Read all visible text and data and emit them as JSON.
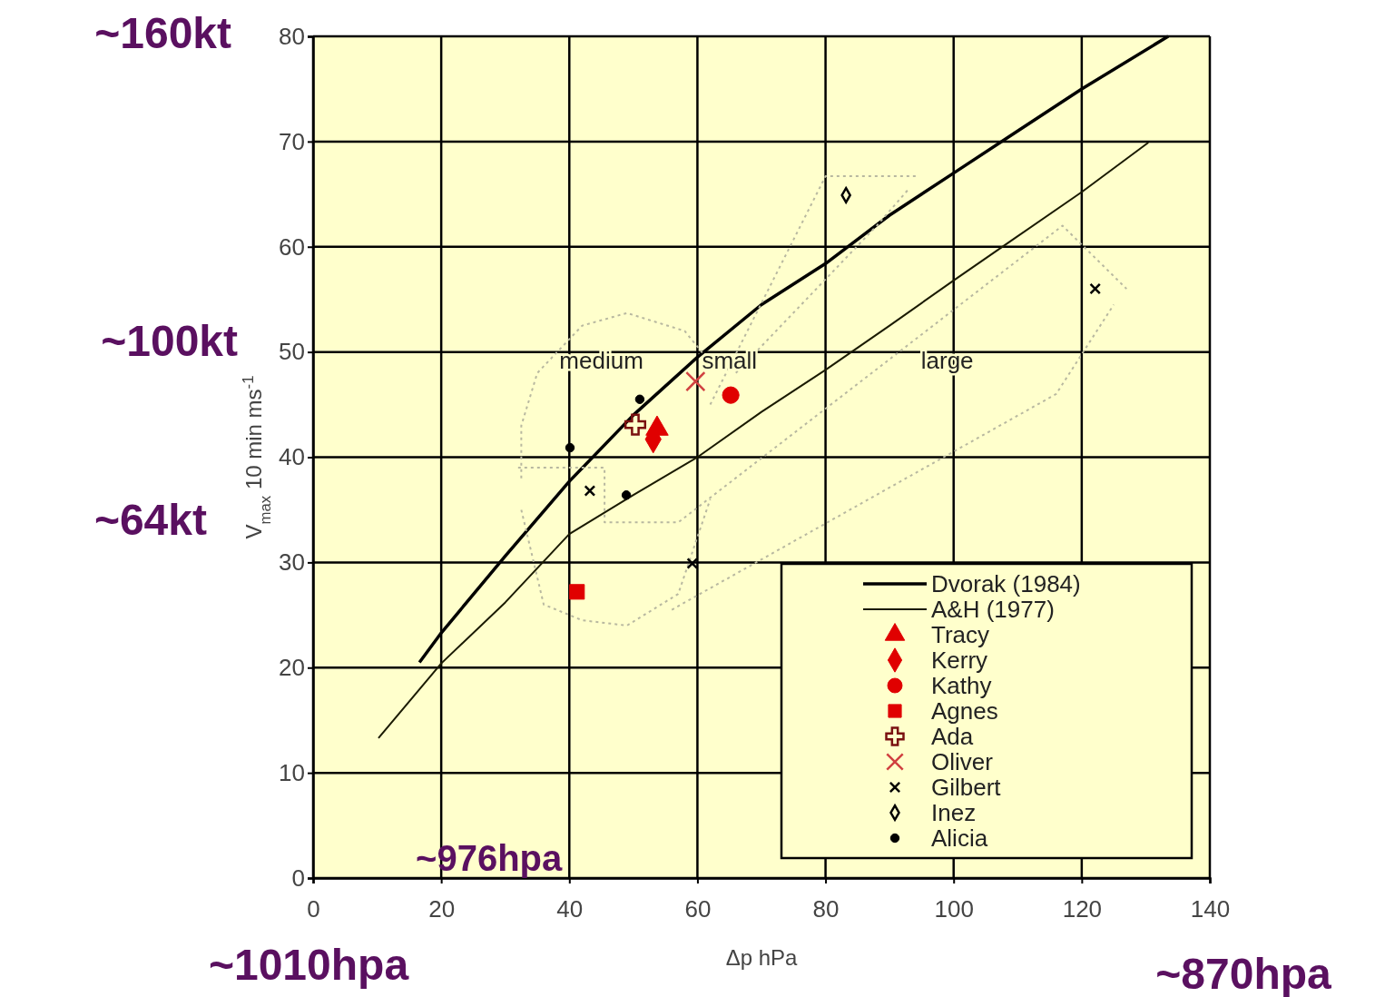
{
  "chart_data": {
    "type": "scatter",
    "xlabel": "Δp  hPa",
    "ylabel": "V$_{max}$ 10 min  ms$^{-1}$",
    "xlim": [
      0,
      140
    ],
    "ylim": [
      0,
      80
    ],
    "xticks": [
      0,
      20,
      40,
      60,
      80,
      100,
      120,
      140
    ],
    "yticks": [
      0,
      10,
      20,
      30,
      40,
      50,
      60,
      70,
      80
    ],
    "grid": true,
    "legend": "bottom right",
    "series": [
      {
        "name": "Dvorak (1984)",
        "type": "line",
        "color": "#000000",
        "marker": "none",
        "line_style": "solid",
        "x": [
          16.6,
          20,
          30,
          40,
          50,
          60,
          70,
          80,
          90,
          100,
          110,
          120,
          133.5
        ],
        "values": [
          20.5,
          23.3,
          30.6,
          37.7,
          44,
          49.5,
          54.5,
          58.4,
          63,
          67,
          71,
          75,
          80
        ]
      },
      {
        "name": "A&H (1977)",
        "type": "line",
        "color": "#1a1a00",
        "marker": "none",
        "line_style": "solid",
        "x": [
          10.2,
          20,
          30,
          40,
          50,
          60,
          70,
          80,
          90,
          100,
          110,
          120,
          130.4
        ],
        "values": [
          13.3,
          20.4,
          26.2,
          32.7,
          36.4,
          40,
          44.3,
          48.3,
          52.5,
          56.8,
          61,
          65.2,
          69.9
        ]
      },
      {
        "name": "Tracy",
        "color": "#e00000",
        "marker": "triangle",
        "x": [
          53.7
        ],
        "values": [
          42.7
        ]
      },
      {
        "name": "Kerry",
        "color": "#e00000",
        "marker": "diamond",
        "x": [
          53.1
        ],
        "values": [
          41.7
        ]
      },
      {
        "name": "Kathy",
        "color": "#e00000",
        "marker": "circle",
        "x": [
          65.2
        ],
        "values": [
          45.9
        ]
      },
      {
        "name": "Agnes",
        "color": "#e00000",
        "marker": "square",
        "x": [
          41.2
        ],
        "values": [
          27.2
        ]
      },
      {
        "name": "Ada",
        "color": "#7a1010",
        "marker": "plus",
        "x": [
          50.3
        ],
        "values": [
          43.1
        ]
      },
      {
        "name": "Oliver",
        "color": "#d04040",
        "marker": "cross",
        "x": [
          59.7
        ],
        "values": [
          47.2
        ]
      },
      {
        "name": "Gilbert",
        "color": "#000000",
        "marker": "cross",
        "x": [
          43.2,
          59.2,
          122.1
        ],
        "values": [
          36.8,
          29.9,
          56.0
        ]
      },
      {
        "name": "Inez",
        "color": "#000000",
        "marker": "diamond-open",
        "x": [
          83.2
        ],
        "values": [
          64.9
        ]
      },
      {
        "name": "Alicia",
        "color": "#000000",
        "marker": "circle",
        "x": [
          51.0,
          40.1,
          48.9
        ],
        "values": [
          45.5,
          40.9,
          36.4
        ]
      },
      {
        "type": "line",
        "color": "#b8b8a0",
        "marker": "none",
        "line_style": "dotted",
        "x": [
          32.5,
          32.5,
          35,
          42,
          49,
          58,
          62
        ],
        "values": [
          38,
          43,
          48,
          52.5,
          53.7,
          52,
          49
        ]
      },
      {
        "type": "line",
        "color": "#b8b8a0",
        "marker": "none",
        "line_style": "dotted",
        "x": [
          32.5,
          36,
          42,
          49,
          57,
          62
        ],
        "values": [
          35,
          26,
          24.5,
          24,
          27,
          36
        ]
      },
      {
        "type": "line",
        "color": "#b8b8a0",
        "marker": "none",
        "line_style": "dotted",
        "x": [
          32,
          45.5,
          45.5,
          57,
          117,
          127
        ],
        "values": [
          39,
          39,
          33.8,
          33.8,
          62,
          56
        ]
      },
      {
        "type": "line",
        "color": "#b8b8a0",
        "marker": "none",
        "line_style": "dotted",
        "x": [
          56,
          116,
          125
        ],
        "values": [
          25.5,
          46,
          54.5
        ]
      },
      {
        "type": "line",
        "color": "#b8b8a0",
        "marker": "none",
        "line_style": "dotted",
        "x": [
          62,
          80,
          94.5
        ],
        "values": [
          45,
          66.7,
          66.7
        ]
      },
      {
        "type": "line",
        "color": "#b8b8a0",
        "marker": "none",
        "line_style": "dotted",
        "x": [
          66,
          88,
          93
        ],
        "values": [
          48,
          62,
          65.5
        ]
      }
    ],
    "annotations": [
      "medium",
      "small",
      "large",
      "~160kt",
      "~100kt",
      "~64kt",
      "~976hpa",
      "~1010hpa",
      "~870hpa"
    ]
  }
}
